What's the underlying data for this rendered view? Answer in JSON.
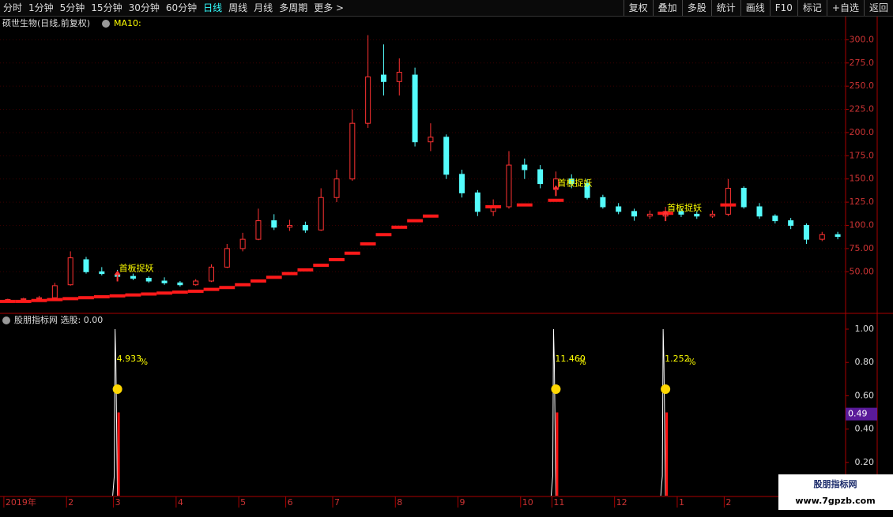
{
  "toolbar": {
    "tabs": [
      "分时",
      "1分钟",
      "5分钟",
      "15分钟",
      "30分钟",
      "60分钟",
      "日线",
      "周线",
      "月线",
      "多周期",
      "更多 >"
    ],
    "active": "日线",
    "buttons": [
      "复权",
      "叠加",
      "多股",
      "统计",
      "画线",
      "F10",
      "标记",
      "+自选",
      "返回"
    ]
  },
  "chart_data": [
    {
      "type": "candlestick",
      "title": "硕世生物(日线,前复权)",
      "indicator": "MA10:",
      "up_color": "#ff3232",
      "down_color": "#54fcfc",
      "ma_color": "#ff1a1a",
      "grid": true,
      "ylim": [
        6,
        325
      ],
      "yticks": [
        {
          "value": 300,
          "label": "300.0"
        },
        {
          "value": 275,
          "label": "275.0"
        },
        {
          "value": 250,
          "label": "250.0"
        },
        {
          "value": 225,
          "label": "225.0"
        },
        {
          "value": 200,
          "label": "200.0"
        },
        {
          "value": 175,
          "label": "175.0"
        },
        {
          "value": 150,
          "label": "150.0"
        },
        {
          "value": 125,
          "label": "125.0"
        },
        {
          "value": 100,
          "label": "100.0"
        },
        {
          "value": 75,
          "label": "75.00"
        },
        {
          "value": 50,
          "label": "50.00"
        }
      ],
      "categories": [
        "2019年",
        null,
        null,
        null,
        "2",
        null,
        null,
        "3",
        null,
        null,
        null,
        "4",
        null,
        null,
        null,
        "5",
        null,
        null,
        "6",
        null,
        null,
        "7",
        null,
        null,
        null,
        "8",
        null,
        null,
        null,
        "9",
        null,
        null,
        null,
        "10",
        null,
        "11",
        null,
        null,
        null,
        "12",
        null,
        null,
        null,
        "1",
        null,
        null,
        "2",
        null,
        null,
        null,
        null,
        null,
        null,
        null
      ],
      "open": [
        19,
        20,
        21,
        22,
        36,
        63,
        50,
        47,
        45,
        43,
        40,
        38,
        36,
        40,
        55,
        75,
        85,
        105,
        98,
        100,
        95,
        130,
        150,
        210,
        262,
        255,
        262,
        190,
        195,
        155,
        135,
        115,
        120,
        165,
        160,
        140,
        150,
        145,
        130,
        120,
        115,
        110,
        110,
        115,
        112,
        110,
        112,
        140,
        120,
        110,
        105,
        100,
        85,
        90
      ],
      "high": [
        21,
        22,
        24,
        38,
        72,
        66,
        55,
        52,
        48,
        45,
        44,
        40,
        42,
        58,
        80,
        92,
        118,
        112,
        106,
        104,
        140,
        160,
        225,
        305,
        295,
        280,
        270,
        210,
        198,
        160,
        138,
        128,
        180,
        172,
        165,
        158,
        155,
        150,
        133,
        124,
        118,
        116,
        120,
        118,
        115,
        116,
        150,
        142,
        124,
        112,
        108,
        102,
        93,
        93
      ],
      "low": [
        18,
        19,
        20,
        22,
        35,
        48,
        46,
        43,
        41,
        38,
        36,
        34,
        35,
        39,
        54,
        72,
        84,
        95,
        94,
        92,
        94,
        125,
        148,
        205,
        240,
        240,
        185,
        180,
        150,
        130,
        110,
        110,
        118,
        150,
        140,
        135,
        140,
        128,
        118,
        112,
        105,
        107,
        108,
        109,
        107,
        108,
        110,
        118,
        107,
        102,
        96,
        80,
        83,
        85
      ],
      "close": [
        20,
        21,
        22,
        35,
        65,
        50,
        48,
        45,
        43,
        40,
        38,
        36,
        40,
        55,
        75,
        85,
        105,
        98,
        100,
        95,
        130,
        150,
        210,
        260,
        255,
        265,
        190,
        195,
        155,
        135,
        115,
        120,
        165,
        160,
        145,
        150,
        145,
        130,
        120,
        115,
        110,
        112,
        115,
        112,
        110,
        112,
        140,
        120,
        110,
        105,
        100,
        85,
        90,
        88
      ],
      "ma": [
        18,
        18,
        19,
        20,
        21,
        22,
        23,
        24,
        25,
        26,
        27,
        28,
        29,
        31,
        33,
        36,
        40,
        44,
        48,
        52,
        57,
        63,
        70,
        80,
        90,
        98,
        105,
        110,
        null,
        null,
        null,
        120,
        null,
        122,
        null,
        127,
        null,
        null,
        null,
        null,
        null,
        null,
        113,
        null,
        null,
        null,
        122,
        null,
        null,
        null,
        null,
        null,
        null,
        null
      ],
      "annotations": [
        "首板捉妖",
        "首板捉妖",
        "首板捉妖"
      ]
    },
    {
      "type": "bar",
      "title": "股朋指标网 选股: 0.00",
      "ylim": [
        0,
        1.09
      ],
      "yticks": [
        {
          "value": 1,
          "label": "1.00"
        },
        {
          "value": 0.8,
          "label": "0.80"
        },
        {
          "value": 0.6,
          "label": "0.60"
        },
        {
          "value": 0.4,
          "label": "0.40"
        },
        {
          "value": 0.2,
          "label": "0.20"
        }
      ],
      "cursor_value": 0.49,
      "series": [
        {
          "color": "#ffffff",
          "values": [
            null,
            null,
            null,
            null,
            null,
            null,
            null,
            1,
            null,
            null,
            null,
            null,
            null,
            null,
            null,
            null,
            null,
            null,
            null,
            null,
            null,
            null,
            null,
            null,
            null,
            null,
            null,
            null,
            null,
            null,
            null,
            null,
            null,
            null,
            null,
            1,
            null,
            null,
            null,
            null,
            null,
            null,
            1,
            null,
            null,
            null,
            null,
            null,
            null,
            null,
            null,
            null,
            null,
            null
          ]
        },
        {
          "color": "#ff1010",
          "values": [
            null,
            null,
            null,
            null,
            null,
            null,
            null,
            0.5,
            null,
            null,
            null,
            null,
            null,
            null,
            null,
            null,
            null,
            null,
            null,
            null,
            null,
            null,
            null,
            null,
            null,
            null,
            null,
            null,
            null,
            null,
            null,
            null,
            null,
            null,
            null,
            0.5,
            null,
            null,
            null,
            null,
            null,
            null,
            0.5,
            null,
            null,
            null,
            null,
            null,
            null,
            null,
            null,
            null,
            null,
            null
          ]
        }
      ],
      "pct_labels": [
        "4.933",
        "11.460",
        "1.252"
      ],
      "pct_unit": "%"
    }
  ],
  "watermark": {
    "name": "股朋指标网",
    "url": "www.7gpzb.com"
  }
}
